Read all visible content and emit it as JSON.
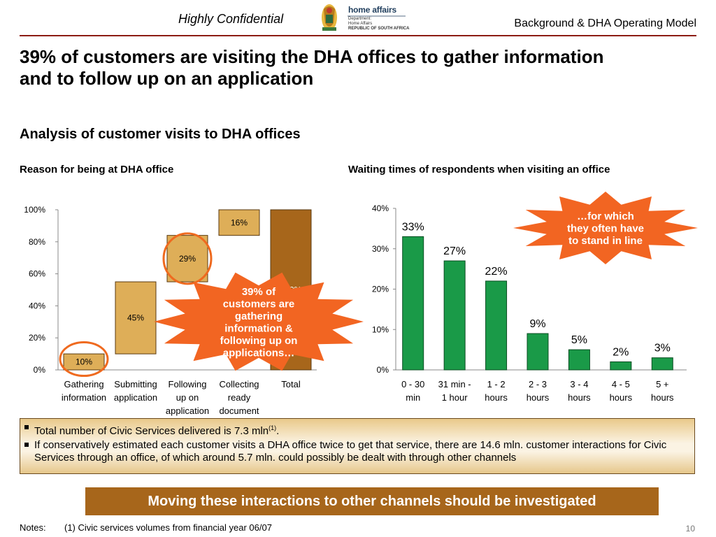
{
  "header": {
    "confidential": "Highly Confidential",
    "section": "Background & DHA Operating Model",
    "logo_brand": "home affairs",
    "logo_line1": "Department:",
    "logo_line2": "Home Affairs",
    "logo_line3": "REPUBLIC OF SOUTH AFRICA"
  },
  "title": {
    "line1": "39% of customers are visiting the DHA offices to gather information",
    "line2": "and to follow up on an application"
  },
  "analysis_title": "Analysis of customer visits to DHA offices",
  "chart_data": [
    {
      "type": "waterfall",
      "title": "Reason for being at DHA office",
      "categories": [
        [
          "Gathering",
          "information"
        ],
        [
          "Submitting",
          "application"
        ],
        [
          "Following",
          "up on",
          "application"
        ],
        [
          "Collecting",
          "ready",
          "document"
        ],
        [
          "Total"
        ]
      ],
      "values": [
        10,
        45,
        29,
        16,
        100
      ],
      "data_labels": [
        "10%",
        "45%",
        "29%",
        "16%",
        "100%"
      ],
      "ylim": [
        0,
        100
      ],
      "yticks": [
        "0%",
        "20%",
        "40%",
        "60%",
        "80%",
        "100%"
      ],
      "highlighted": [
        "Gathering information",
        "Following up on application"
      ],
      "colors": {
        "step": "#deae58",
        "total": "#a7661b",
        "highlight_circle": "#ef6a1f"
      },
      "callout": [
        "39% of",
        "customers are",
        "gathering",
        "information &",
        "following up on",
        "applications…"
      ]
    },
    {
      "type": "bar",
      "title": "Waiting times of respondents when visiting an office",
      "categories": [
        [
          "0 - 30",
          "min"
        ],
        [
          "31 min -",
          "1 hour"
        ],
        [
          "1 - 2",
          "hours"
        ],
        [
          "2 - 3",
          "hours"
        ],
        [
          "3 - 4",
          "hours"
        ],
        [
          "4 - 5",
          "hours"
        ],
        [
          "5 +",
          "hours"
        ]
      ],
      "values": [
        33,
        27,
        22,
        9,
        5,
        2,
        3
      ],
      "data_labels": [
        "33%",
        "27%",
        "22%",
        "9%",
        "5%",
        "2%",
        "3%"
      ],
      "ylim": [
        0,
        40
      ],
      "yticks": [
        "0%",
        "10%",
        "20%",
        "30%",
        "40%"
      ],
      "colors": {
        "bar": "#1a9a48",
        "callout": "#f26522"
      },
      "callout": [
        "…for which",
        "they often have",
        "to stand in line"
      ]
    }
  ],
  "bullets": {
    "b1_text": "Total number of Civic Services delivered is 7.3 mln",
    "b1_sup": "(1)",
    "b1_end": ".",
    "b2_text": "If conservatively estimated each customer visits a DHA office twice to get that service, there are 14.6 mln. customer interactions for Civic Services through an office, of which around 5.7 mln. could possibly be dealt with through other channels"
  },
  "banner": "Moving these interactions to other channels should be investigated",
  "notes": {
    "label": "Notes:",
    "text": "(1) Civic services volumes from financial year 06/07"
  },
  "page_number": "10"
}
